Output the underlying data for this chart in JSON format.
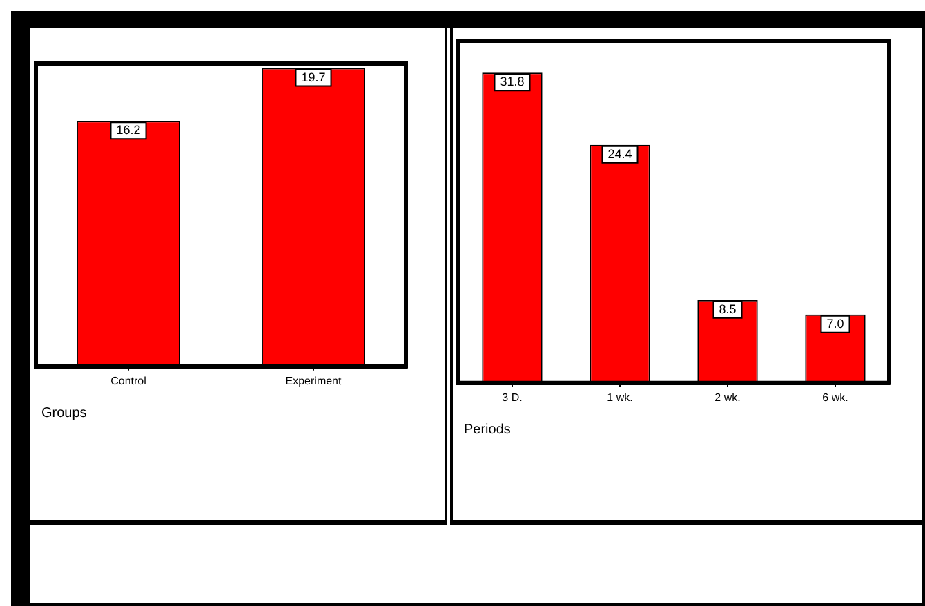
{
  "chart_data": [
    {
      "type": "bar",
      "xlabel": "Groups",
      "categories": [
        "Control",
        "Experiment"
      ],
      "values": [
        16.2,
        19.7
      ],
      "value_labels": [
        "16.2",
        "19.7"
      ],
      "color": "#ff0000",
      "tick_labels": "x",
      "grid": false,
      "legend": false
    },
    {
      "type": "bar",
      "xlabel": "Periods",
      "categories": [
        "3 D.",
        "1 wk.",
        "2 wk.",
        "6 wk."
      ],
      "values": [
        31.8,
        24.4,
        8.5,
        7.0
      ],
      "value_labels": [
        "31.8",
        "24.4",
        "8.5",
        "7.0"
      ],
      "color": "#ff0000",
      "tick_labels": "x",
      "grid": false,
      "legend": false
    }
  ]
}
